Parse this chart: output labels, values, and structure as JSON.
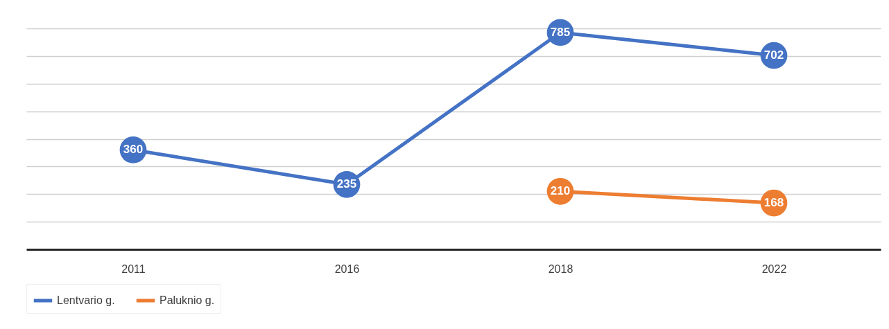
{
  "chart_data": {
    "type": "line",
    "categories": [
      "2011",
      "2016",
      "2018",
      "2022"
    ],
    "series": [
      {
        "name": "Lentvario g.",
        "color": "#4472c4",
        "values": [
          360,
          235,
          785,
          702
        ]
      },
      {
        "name": "Paluknio g.",
        "color": "#ed7d31",
        "values": [
          null,
          null,
          210,
          168
        ]
      }
    ],
    "grid": "y",
    "legend": "bottom",
    "marker": "circle",
    "data_labels": true,
    "tick_labels": "x"
  }
}
